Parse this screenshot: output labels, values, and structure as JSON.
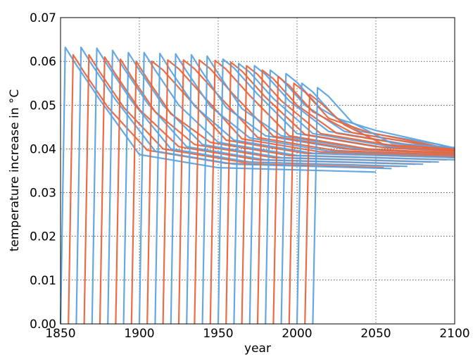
{
  "chart_data": {
    "type": "line",
    "xlabel": "year",
    "ylabel": "temperature increase in °C",
    "xlim": [
      1850,
      2100
    ],
    "xticks": [
      1850,
      1900,
      1950,
      2000,
      2050,
      2100
    ],
    "ylim": [
      0,
      0.07
    ],
    "yticks": [
      {
        "value": 0,
        "label": "0.00"
      },
      {
        "value": 0.01,
        "label": "0.01"
      },
      {
        "value": 0.02,
        "label": "0.02"
      },
      {
        "value": 0.03,
        "label": "0.03"
      },
      {
        "value": 0.04,
        "label": "0.04"
      },
      {
        "value": 0.05,
        "label": "0.05"
      },
      {
        "value": 0.06,
        "label": "0.06"
      },
      {
        "value": 0.07,
        "label": "0.07"
      }
    ],
    "grid": true,
    "series": [
      {
        "color": "#5ea3e0",
        "x": [
          1850,
          1853,
          1860,
          1875,
          1900,
          1950,
          2050
        ],
        "values": [
          0,
          0.0632,
          0.0592,
          0.0512,
          0.0387,
          0.0357,
          0.0347
        ]
      },
      {
        "color": "#e8653d",
        "x": [
          1855,
          1858,
          1865,
          1880,
          1905,
          1955,
          2055
        ],
        "values": [
          0,
          0.0615,
          0.0575,
          0.0495,
          0.0397,
          0.0367,
          0.0357
        ]
      },
      {
        "color": "#5ea3e0",
        "x": [
          1860,
          1863,
          1870,
          1885,
          1910,
          1960,
          2060
        ],
        "values": [
          0,
          0.0632,
          0.0592,
          0.0512,
          0.0395,
          0.0365,
          0.0355
        ]
      },
      {
        "color": "#e8653d",
        "x": [
          1865,
          1868,
          1875,
          1890,
          1915,
          1965,
          2065
        ],
        "values": [
          0,
          0.0615,
          0.0575,
          0.0495,
          0.04,
          0.037,
          0.036
        ]
      },
      {
        "color": "#5ea3e0",
        "x": [
          1870,
          1873,
          1880,
          1895,
          1920,
          1970,
          2070
        ],
        "values": [
          0,
          0.063,
          0.059,
          0.051,
          0.04,
          0.037,
          0.036
        ]
      },
      {
        "color": "#e8653d",
        "x": [
          1875,
          1878,
          1885,
          1900,
          1925,
          1975,
          2075
        ],
        "values": [
          0,
          0.061,
          0.057,
          0.049,
          0.0405,
          0.0375,
          0.0365
        ]
      },
      {
        "color": "#5ea3e0",
        "x": [
          1880,
          1883,
          1890,
          1905,
          1930,
          1980,
          2080
        ],
        "values": [
          0,
          0.0625,
          0.0585,
          0.0505,
          0.0405,
          0.0375,
          0.0365
        ]
      },
      {
        "color": "#e8653d",
        "x": [
          1885,
          1888,
          1895,
          1910,
          1935,
          1985,
          2085
        ],
        "values": [
          0,
          0.0605,
          0.0565,
          0.0485,
          0.041,
          0.038,
          0.037
        ]
      },
      {
        "color": "#5ea3e0",
        "x": [
          1890,
          1893,
          1900,
          1915,
          1940,
          1990,
          2090
        ],
        "values": [
          0,
          0.062,
          0.058,
          0.05,
          0.041,
          0.038,
          0.037
        ]
      },
      {
        "color": "#e8653d",
        "x": [
          1895,
          1898,
          1905,
          1920,
          1945,
          1995,
          2095
        ],
        "values": [
          0,
          0.06,
          0.056,
          0.048,
          0.0415,
          0.0385,
          0.0375
        ]
      },
      {
        "color": "#5ea3e0",
        "x": [
          1900,
          1903,
          1910,
          1925,
          1950,
          2000,
          2100
        ],
        "values": [
          0,
          0.062,
          0.058,
          0.05,
          0.0415,
          0.0385,
          0.0375
        ]
      },
      {
        "color": "#e8653d",
        "x": [
          1905,
          1908,
          1915,
          1930,
          1955,
          2005,
          2100
        ],
        "values": [
          0,
          0.06,
          0.058,
          0.052,
          0.042,
          0.039,
          0.038
        ]
      },
      {
        "color": "#5ea3e0",
        "x": [
          1910,
          1913,
          1920,
          1935,
          1960,
          2010,
          2100
        ],
        "values": [
          0,
          0.0618,
          0.0578,
          0.0498,
          0.042,
          0.039,
          0.038
        ]
      },
      {
        "color": "#e8653d",
        "x": [
          1915,
          1918,
          1925,
          1940,
          1965,
          2015,
          2100
        ],
        "values": [
          0,
          0.0603,
          0.0583,
          0.0523,
          0.0423,
          0.0393,
          0.0383
        ]
      },
      {
        "color": "#5ea3e0",
        "x": [
          1920,
          1923,
          1930,
          1945,
          1970,
          2020,
          2100
        ],
        "values": [
          0,
          0.0617,
          0.0577,
          0.0497,
          0.0425,
          0.0395,
          0.0385
        ]
      },
      {
        "color": "#e8653d",
        "x": [
          1925,
          1928,
          1935,
          1950,
          1975,
          2025,
          2100
        ],
        "values": [
          0,
          0.0603,
          0.0583,
          0.0523,
          0.0426,
          0.0396,
          0.0386
        ]
      },
      {
        "color": "#5ea3e0",
        "x": [
          1930,
          1933,
          1940,
          1955,
          1980,
          2030,
          2100
        ],
        "values": [
          0,
          0.0615,
          0.0575,
          0.0495,
          0.043,
          0.04,
          0.039
        ]
      },
      {
        "color": "#e8653d",
        "x": [
          1935,
          1938,
          1945,
          1960,
          1985,
          2035,
          2100
        ],
        "values": [
          0,
          0.0603,
          0.0583,
          0.0523,
          0.0429,
          0.0399,
          0.0389
        ]
      },
      {
        "color": "#5ea3e0",
        "x": [
          1940,
          1943,
          1950,
          1965,
          1990,
          2040,
          2100
        ],
        "values": [
          0,
          0.0612,
          0.0572,
          0.0492,
          0.043,
          0.04,
          0.039
        ]
      },
      {
        "color": "#e8653d",
        "x": [
          1945,
          1948,
          1955,
          1970,
          1995,
          2045,
          2100
        ],
        "values": [
          0,
          0.0602,
          0.0582,
          0.0522,
          0.043,
          0.04,
          0.039
        ]
      },
      {
        "color": "#5ea3e0",
        "x": [
          1950,
          1953,
          1960,
          1975,
          2000,
          2050,
          2100
        ],
        "values": [
          0,
          0.0605,
          0.0585,
          0.0525,
          0.0435,
          0.0405,
          0.0395
        ]
      },
      {
        "color": "#e8653d",
        "x": [
          1955,
          1958,
          1965,
          1980,
          2005,
          2055,
          2100
        ],
        "values": [
          0,
          0.0598,
          0.0578,
          0.0518,
          0.0433,
          0.0403,
          0.0393
        ]
      },
      {
        "color": "#5ea3e0",
        "x": [
          1960,
          1963,
          1970,
          1985,
          2010,
          2060,
          2100
        ],
        "values": [
          0,
          0.0595,
          0.0575,
          0.0515,
          0.0435,
          0.0405,
          0.0395
        ]
      },
      {
        "color": "#e8653d",
        "x": [
          1965,
          1968,
          1975,
          1990,
          2015,
          2065,
          2100
        ],
        "values": [
          0,
          0.059,
          0.057,
          0.051,
          0.0435,
          0.0405,
          0.0395
        ]
      },
      {
        "color": "#5ea3e0",
        "x": [
          1970,
          1973,
          1980,
          1995,
          2020,
          2070,
          2100
        ],
        "values": [
          0,
          0.059,
          0.057,
          0.051,
          0.044,
          0.041,
          0.04
        ]
      },
      {
        "color": "#e8653d",
        "x": [
          1975,
          1978,
          1985,
          2000,
          2025,
          2075,
          2100
        ],
        "values": [
          0,
          0.058,
          0.056,
          0.05,
          0.0436,
          0.0406,
          0.0396
        ]
      },
      {
        "color": "#5ea3e0",
        "x": [
          1980,
          1983,
          1990,
          2005,
          2030,
          2080,
          2100
        ],
        "values": [
          0,
          0.058,
          0.056,
          0.05,
          0.044,
          0.041,
          0.04
        ]
      },
      {
        "color": "#e8653d",
        "x": [
          1985,
          1988,
          1995,
          2010,
          2035,
          2085,
          2100
        ],
        "values": [
          0,
          0.0565,
          0.0545,
          0.0485,
          0.0437,
          0.0407,
          0.0397
        ]
      },
      {
        "color": "#5ea3e0",
        "x": [
          1990,
          1993,
          2000,
          2015,
          2040,
          2090,
          2100
        ],
        "values": [
          0,
          0.0572,
          0.0552,
          0.0492,
          0.044,
          0.041,
          0.04
        ]
      },
      {
        "color": "#e8653d",
        "x": [
          1995,
          1998,
          2005,
          2020,
          2045,
          2100
        ],
        "values": [
          0,
          0.055,
          0.053,
          0.047,
          0.0438,
          0.0398
        ]
      },
      {
        "color": "#5ea3e0",
        "x": [
          2000,
          2003,
          2010,
          2025,
          2050,
          2100
        ],
        "values": [
          0,
          0.055,
          0.053,
          0.047,
          0.0442,
          0.0402
        ]
      },
      {
        "color": "#e8653d",
        "x": [
          2005,
          2008,
          2015,
          2030,
          2055,
          2100
        ],
        "values": [
          0,
          0.0525,
          0.0505,
          0.0455,
          0.041,
          0.04
        ]
      },
      {
        "color": "#5ea3e0",
        "x": [
          2010,
          2013,
          2020,
          2035,
          2060,
          2100
        ],
        "values": [
          0,
          0.054,
          0.052,
          0.046,
          0.0413,
          0.0403
        ]
      }
    ]
  }
}
